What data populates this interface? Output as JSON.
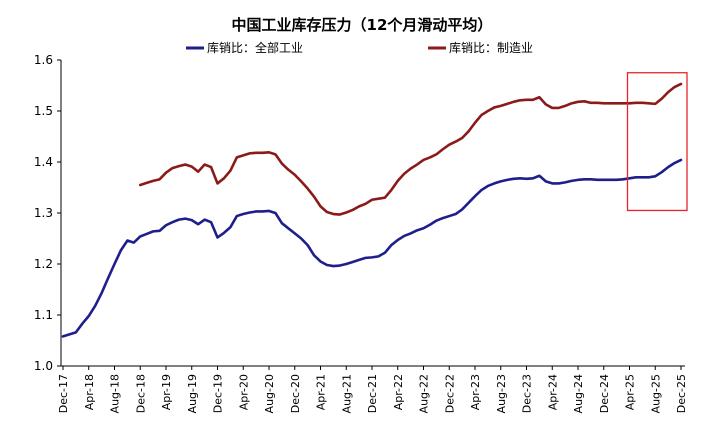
{
  "chart_data": {
    "type": "line",
    "title": "中国工业库存压力（12个月滑动平均）",
    "xlabel": "",
    "ylabel": "",
    "ylim": [
      1.0,
      1.6
    ],
    "y_ticks": [
      "1.0",
      "1.1",
      "1.2",
      "1.3",
      "1.4",
      "1.5",
      "1.6"
    ],
    "x_tick_labels": [
      "Dec-17",
      "Apr-18",
      "Aug-18",
      "Dec-18",
      "Apr-19",
      "Aug-19",
      "Dec-19",
      "Apr-20",
      "Aug-20",
      "Dec-20",
      "Apr-21",
      "Aug-21",
      "Dec-21",
      "Apr-22",
      "Aug-22",
      "Dec-22",
      "Apr-23",
      "Aug-23",
      "Dec-23",
      "Apr-24",
      "Aug-24",
      "Dec-24",
      "Apr-25",
      "Aug-25",
      "Dec-25"
    ],
    "x_range_months": [
      0,
      96
    ],
    "colors": {
      "all_industry": "#1f1f8c",
      "manufacturing": "#8b1a1a",
      "highlight_box": "#e8242a"
    },
    "highlight": {
      "x_start_month": 88,
      "x_end_month": 97,
      "y_low": 1.305,
      "y_high": 1.575
    },
    "series": [
      {
        "name": "库销比：全部工业",
        "x_months": [
          0,
          1,
          2,
          3,
          4,
          5,
          6,
          7,
          8,
          9,
          10,
          11,
          12,
          13,
          14,
          15,
          16,
          17,
          18,
          19,
          20,
          21,
          22,
          23,
          24,
          25,
          26,
          27,
          28,
          29,
          30,
          31,
          32,
          33,
          34,
          35,
          36,
          37,
          38,
          39,
          40,
          41,
          42,
          43,
          44,
          45,
          46,
          47,
          48,
          49,
          50,
          51,
          52,
          53,
          54,
          55,
          56,
          57,
          58,
          59,
          60,
          61,
          62,
          63,
          64,
          65,
          66,
          67,
          68,
          69,
          70,
          71,
          72,
          73,
          74,
          75,
          76,
          77,
          78,
          79,
          80,
          81,
          82,
          83,
          84,
          85,
          86,
          87,
          88,
          89,
          90,
          91,
          92,
          93,
          94,
          95,
          96
        ],
        "values": [
          1.058,
          1.062,
          1.066,
          1.083,
          1.098,
          1.118,
          1.143,
          1.172,
          1.2,
          1.227,
          1.246,
          1.242,
          1.254,
          1.259,
          1.264,
          1.265,
          1.276,
          1.282,
          1.287,
          1.289,
          1.286,
          1.278,
          1.287,
          1.282,
          1.252,
          1.261,
          1.272,
          1.294,
          1.298,
          1.301,
          1.303,
          1.303,
          1.304,
          1.3,
          1.28,
          1.27,
          1.26,
          1.25,
          1.237,
          1.217,
          1.205,
          1.198,
          1.196,
          1.197,
          1.2,
          1.204,
          1.208,
          1.212,
          1.213,
          1.215,
          1.222,
          1.237,
          1.247,
          1.255,
          1.26,
          1.266,
          1.27,
          1.277,
          1.285,
          1.29,
          1.294,
          1.298,
          1.307,
          1.32,
          1.333,
          1.345,
          1.353,
          1.358,
          1.362,
          1.365,
          1.367,
          1.368,
          1.367,
          1.368,
          1.373,
          1.362,
          1.358,
          1.358,
          1.36,
          1.363,
          1.365,
          1.366,
          1.366,
          1.365,
          1.365,
          1.365,
          1.365,
          1.366,
          1.368,
          1.37,
          1.37,
          1.37,
          1.372,
          1.38,
          1.39,
          1.398,
          1.404
        ]
      },
      {
        "name": "库销比：制造业",
        "x_months": [
          12,
          13,
          14,
          15,
          16,
          17,
          18,
          19,
          20,
          21,
          22,
          23,
          24,
          25,
          26,
          27,
          28,
          29,
          30,
          31,
          32,
          33,
          34,
          35,
          36,
          37,
          38,
          39,
          40,
          41,
          42,
          43,
          44,
          45,
          46,
          47,
          48,
          49,
          50,
          51,
          52,
          53,
          54,
          55,
          56,
          57,
          58,
          59,
          60,
          61,
          62,
          63,
          64,
          65,
          66,
          67,
          68,
          69,
          70,
          71,
          72,
          73,
          74,
          75,
          76,
          77,
          78,
          79,
          80,
          81,
          82,
          83,
          84,
          85,
          86,
          87,
          88,
          89,
          90,
          91,
          92,
          93,
          94,
          95,
          96
        ],
        "values": [
          1.355,
          1.359,
          1.363,
          1.366,
          1.379,
          1.388,
          1.392,
          1.395,
          1.391,
          1.381,
          1.395,
          1.39,
          1.358,
          1.368,
          1.383,
          1.409,
          1.413,
          1.417,
          1.418,
          1.418,
          1.419,
          1.415,
          1.397,
          1.385,
          1.375,
          1.362,
          1.348,
          1.332,
          1.313,
          1.302,
          1.298,
          1.297,
          1.301,
          1.306,
          1.313,
          1.318,
          1.326,
          1.328,
          1.33,
          1.345,
          1.363,
          1.377,
          1.387,
          1.395,
          1.404,
          1.409,
          1.415,
          1.425,
          1.434,
          1.44,
          1.447,
          1.46,
          1.477,
          1.492,
          1.5,
          1.507,
          1.51,
          1.514,
          1.518,
          1.521,
          1.522,
          1.522,
          1.527,
          1.513,
          1.506,
          1.506,
          1.51,
          1.515,
          1.518,
          1.519,
          1.516,
          1.516,
          1.515,
          1.515,
          1.515,
          1.515,
          1.515,
          1.516,
          1.516,
          1.515,
          1.514,
          1.524,
          1.537,
          1.547,
          1.553
        ]
      }
    ]
  }
}
